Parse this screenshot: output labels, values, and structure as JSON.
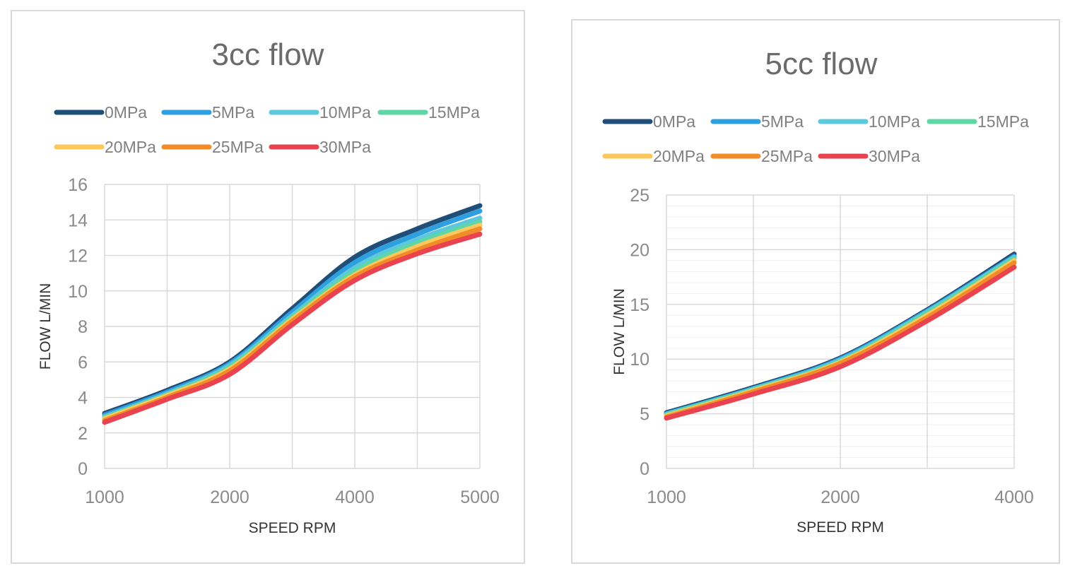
{
  "chart_data": [
    {
      "type": "line",
      "title": "3cc flow",
      "xlabel": "SPEED RPM",
      "ylabel": "FLOW L/MIN",
      "categories": [
        "1000",
        "",
        "2000",
        "",
        "4000",
        "",
        "5000"
      ],
      "ylim": [
        0,
        16
      ],
      "yticks": [
        0,
        2,
        4,
        6,
        8,
        10,
        12,
        14,
        16
      ],
      "grid": true,
      "legend": "top",
      "series": [
        {
          "name": "0MPa",
          "color": "#1f4e79",
          "values": [
            3.1,
            4.4,
            6.0,
            9.0,
            11.9,
            13.5,
            14.8
          ]
        },
        {
          "name": "5MPa",
          "color": "#2e9fdf",
          "values": [
            3.0,
            4.3,
            5.9,
            8.8,
            11.6,
            13.2,
            14.5
          ]
        },
        {
          "name": "10MPa",
          "color": "#5bc8dc",
          "values": [
            2.9,
            4.2,
            5.8,
            8.6,
            11.3,
            12.9,
            14.1
          ]
        },
        {
          "name": "15MPa",
          "color": "#5ed6a5",
          "values": [
            2.85,
            4.15,
            5.7,
            8.5,
            11.1,
            12.7,
            13.9
          ]
        },
        {
          "name": "20MPa",
          "color": "#fcc85b",
          "values": [
            2.8,
            4.1,
            5.6,
            8.4,
            10.9,
            12.5,
            13.7
          ]
        },
        {
          "name": "25MPa",
          "color": "#f28c28",
          "values": [
            2.7,
            4.0,
            5.5,
            8.3,
            10.8,
            12.3,
            13.5
          ]
        },
        {
          "name": "30MPa",
          "color": "#e8434f",
          "values": [
            2.6,
            3.9,
            5.3,
            8.1,
            10.6,
            12.1,
            13.2
          ]
        }
      ]
    },
    {
      "type": "line",
      "title": "5cc flow",
      "xlabel": "SPEED RPM",
      "ylabel": "FLOW L/MIN",
      "categories": [
        "1000",
        "",
        "2000",
        "",
        "4000"
      ],
      "ylim": [
        0,
        25
      ],
      "yticks": [
        0,
        5,
        10,
        15,
        20,
        25
      ],
      "grid": true,
      "legend": "top",
      "series": [
        {
          "name": "0MPa",
          "color": "#1f4e79",
          "values": [
            5.1,
            7.4,
            10.1,
            14.5,
            19.6
          ]
        },
        {
          "name": "5MPa",
          "color": "#2e9fdf",
          "values": [
            5.0,
            7.3,
            10.0,
            14.4,
            19.4
          ]
        },
        {
          "name": "10MPa",
          "color": "#5bc8dc",
          "values": [
            4.95,
            7.25,
            9.9,
            14.3,
            19.3
          ]
        },
        {
          "name": "15MPa",
          "color": "#5ed6a5",
          "values": [
            4.9,
            7.2,
            9.8,
            14.2,
            19.2
          ]
        },
        {
          "name": "20MPa",
          "color": "#fcc85b",
          "values": [
            4.8,
            7.1,
            9.7,
            14.0,
            19.0
          ]
        },
        {
          "name": "25MPa",
          "color": "#f28c28",
          "values": [
            4.7,
            7.0,
            9.6,
            13.8,
            18.8
          ]
        },
        {
          "name": "30MPa",
          "color": "#e8434f",
          "values": [
            4.6,
            6.8,
            9.3,
            13.5,
            18.4
          ]
        }
      ]
    }
  ]
}
